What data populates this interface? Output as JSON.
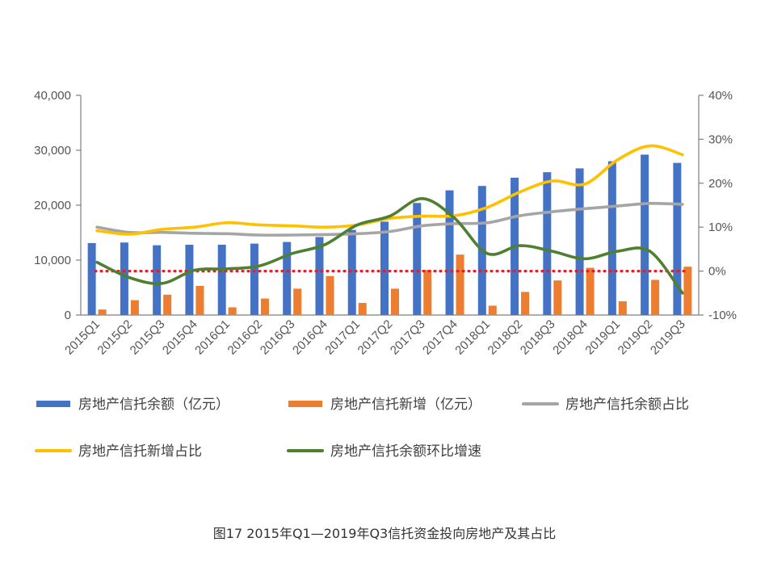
{
  "caption": "图17  2015年Q1—2019年Q3信托资金投向房地产及其占比",
  "chart_data": {
    "type": "bar+line",
    "title": "",
    "categories": [
      "2015Q1",
      "2015Q2",
      "2015Q3",
      "2015Q4",
      "2016Q1",
      "2016Q2",
      "2016Q3",
      "2016Q4",
      "2017Q1",
      "2017Q2",
      "2017Q3",
      "2017Q4",
      "2018Q1",
      "2018Q2",
      "2018Q3",
      "2018Q4",
      "2019Q1",
      "2019Q2",
      "2019Q3"
    ],
    "y_left": {
      "min": 0,
      "max": 40000,
      "ticks": [
        0,
        10000,
        20000,
        30000,
        40000
      ],
      "tick_labels": [
        "0",
        "10,000",
        "20,000",
        "30,000",
        "40,000"
      ]
    },
    "y_right": {
      "min": -10,
      "max": 40,
      "ticks": [
        -10,
        0,
        10,
        20,
        30,
        40
      ],
      "tick_labels": [
        "-10%",
        "0%",
        "10%",
        "20%",
        "30%",
        "40%"
      ]
    },
    "reference_line": {
      "axis": "right",
      "value": 0,
      "style": "dotted",
      "color": "#e0202a"
    },
    "series": [
      {
        "name": "房地产信托余额（亿元）",
        "type": "bar",
        "axis": "left",
        "color": "#4472c4",
        "values": [
          13100,
          13200,
          12700,
          12800,
          12800,
          13000,
          13300,
          14200,
          15500,
          17000,
          20400,
          22700,
          23500,
          25000,
          26000,
          26700,
          28000,
          29200,
          27700
        ]
      },
      {
        "name": "房地产信托新增（亿元）",
        "type": "bar",
        "axis": "left",
        "color": "#ed7d31",
        "values": [
          1000,
          2700,
          3700,
          5300,
          1400,
          3000,
          4800,
          7100,
          2200,
          4800,
          8200,
          11000,
          1700,
          4200,
          6300,
          8600,
          2500,
          6400,
          8800
        ]
      },
      {
        "name": "房地产信托余额占比",
        "type": "line",
        "axis": "right",
        "color": "#a5a5a5",
        "values": [
          10.0,
          8.8,
          8.8,
          8.6,
          8.5,
          8.2,
          8.2,
          8.3,
          8.5,
          9.0,
          10.3,
          10.8,
          11.0,
          12.6,
          13.5,
          14.2,
          14.8,
          15.4,
          15.2
        ]
      },
      {
        "name": "房地产信托新增占比",
        "type": "line",
        "axis": "right",
        "color": "#ffc000",
        "values": [
          9.2,
          8.4,
          9.5,
          10.0,
          11.0,
          10.5,
          10.3,
          10.0,
          10.5,
          12.0,
          12.5,
          12.6,
          14.5,
          18.0,
          20.5,
          19.8,
          25.3,
          28.5,
          26.5
        ]
      },
      {
        "name": "房地产信托余额环比增速",
        "type": "line",
        "axis": "right",
        "color": "#4f7f30",
        "values": [
          2.0,
          -1.5,
          -2.8,
          0.2,
          0.5,
          1.2,
          4.0,
          6.0,
          10.5,
          12.5,
          16.5,
          12.0,
          4.0,
          5.8,
          4.5,
          2.8,
          4.5,
          4.5,
          -5.0
        ]
      }
    ]
  }
}
